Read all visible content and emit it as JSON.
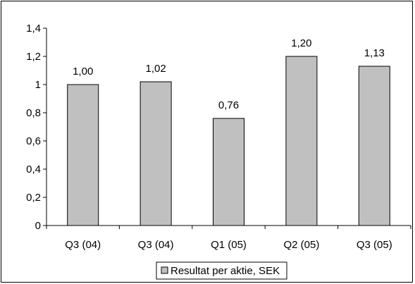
{
  "chart_data": {
    "type": "bar",
    "categories": [
      "Q3 (04)",
      "Q3 (04)",
      "Q1 (05)",
      "Q2 (05)",
      "Q3 (05)"
    ],
    "values": [
      1.0,
      1.02,
      0.76,
      1.2,
      1.13
    ],
    "data_labels": [
      "1,00",
      "1,02",
      "0,76",
      "1,20",
      "1,13"
    ],
    "y_ticks": [
      0,
      0.2,
      0.4,
      0.6,
      0.8,
      1,
      1.2,
      1.4
    ],
    "y_tick_labels": [
      "0",
      "0,2",
      "0,4",
      "0,6",
      "0,8",
      "1",
      "1,2",
      "1,4"
    ],
    "ylim": [
      0,
      1.4
    ],
    "grid": false,
    "legend": {
      "position": "bottom",
      "entries": [
        "Resultat per aktie, SEK"
      ]
    },
    "series": [
      {
        "name": "Resultat per aktie, SEK",
        "values": [
          1.0,
          1.02,
          0.76,
          1.2,
          1.13
        ]
      }
    ],
    "colors": {
      "bar_fill": "#c0c0c0",
      "bar_stroke": "#000000",
      "axis": "#000000"
    }
  }
}
